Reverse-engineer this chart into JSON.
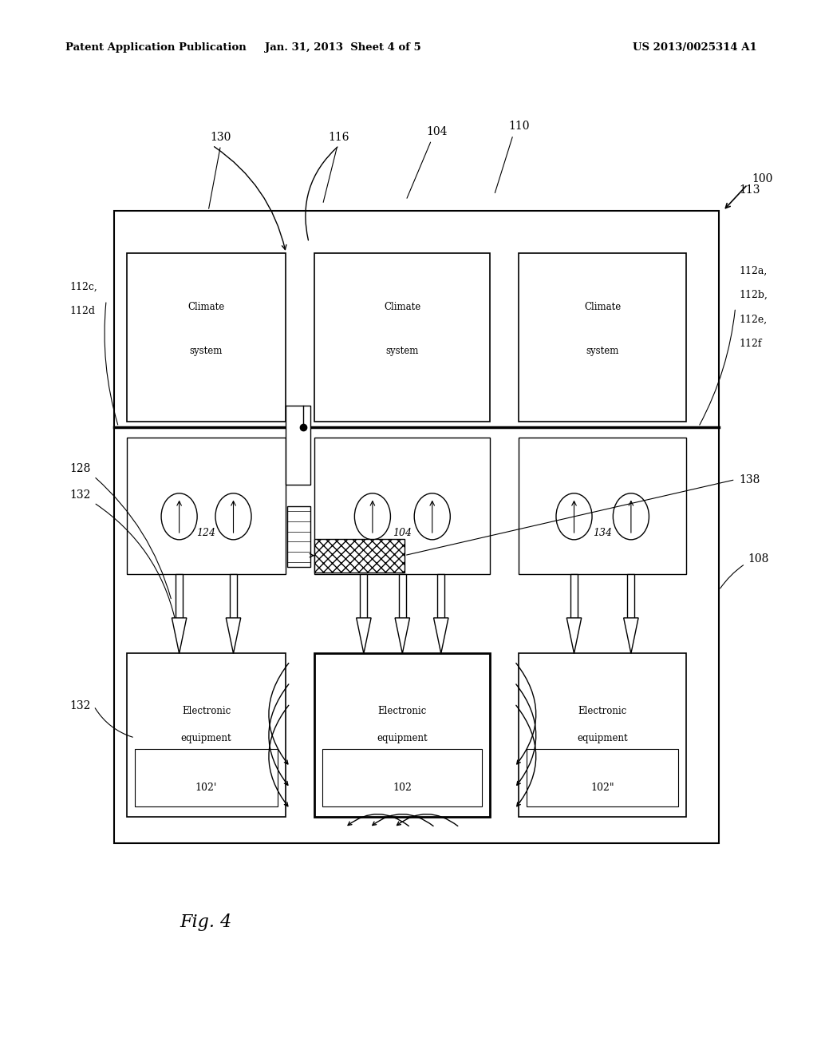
{
  "bg_color": "#ffffff",
  "header_left": "Patent Application Publication",
  "header_mid": "Jan. 31, 2013  Sheet 4 of 5",
  "header_right": "US 2013/0025314 A1",
  "fig_label": "Fig. 4",
  "label_100": "100",
  "label_108": "108",
  "label_113": "113",
  "label_128": "128",
  "label_130": "130",
  "label_116": "116",
  "label_104_top": "104",
  "label_110": "110",
  "label_112a": "112a,",
  "label_112b": "112b,",
  "label_112c": "112c,",
  "label_112d": "112d",
  "label_112e": "112e,",
  "label_112f": "112f",
  "label_124": "124",
  "label_104_mid": "104",
  "label_134": "134",
  "label_138": "138",
  "label_132_top": "132",
  "label_132_bot": "132",
  "label_102p": "102'",
  "label_102": "102",
  "label_102pp": "102”"
}
